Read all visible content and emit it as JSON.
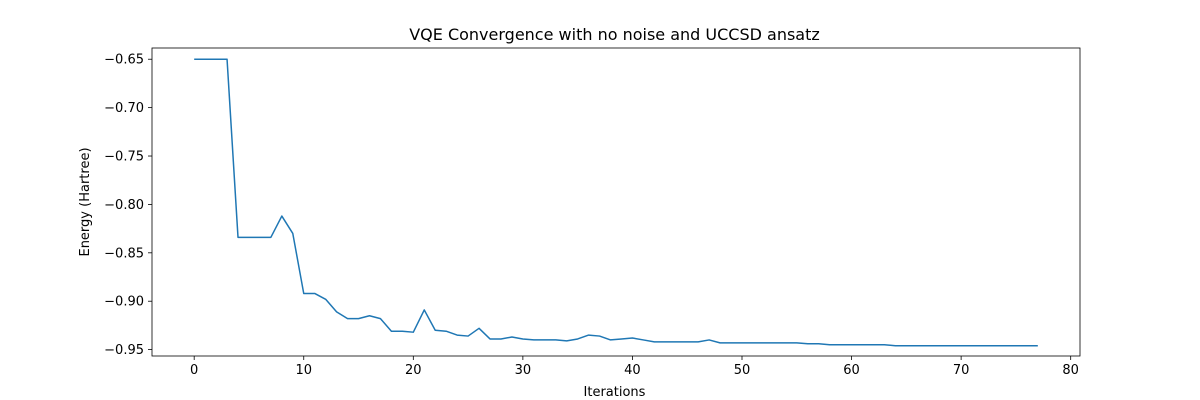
{
  "chart_data": {
    "type": "line",
    "title": "VQE Convergence with no noise and UCCSD ansatz",
    "xlabel": "Iterations",
    "ylabel": "Energy (Hartree)",
    "xlim": [
      -3.85,
      80.85
    ],
    "ylim": [
      -0.9566,
      -0.6384
    ],
    "xticks": [
      0,
      10,
      20,
      30,
      40,
      50,
      60,
      70,
      80
    ],
    "xtick_labels": [
      "0",
      "10",
      "20",
      "30",
      "40",
      "50",
      "60",
      "70",
      "80"
    ],
    "yticks": [
      -0.65,
      -0.7,
      -0.75,
      -0.8,
      -0.85,
      -0.9,
      -0.95
    ],
    "ytick_labels": [
      "−0.65",
      "−0.70",
      "−0.75",
      "−0.80",
      "−0.85",
      "−0.90",
      "−0.95"
    ],
    "grid": false,
    "color": "#1f77b4",
    "series": [
      {
        "x": [
          0,
          1,
          2,
          3,
          4,
          5,
          6,
          7,
          8,
          9,
          10,
          11,
          12,
          13,
          14,
          15,
          16,
          17,
          18,
          19,
          20,
          21,
          22,
          23,
          24,
          25,
          26,
          27,
          28,
          29,
          30,
          31,
          32,
          33,
          34,
          35,
          36,
          37,
          38,
          39,
          40,
          41,
          42,
          43,
          44,
          45,
          46,
          47,
          48,
          49,
          50,
          51,
          52,
          53,
          54,
          55,
          56,
          57,
          58,
          59,
          60,
          61,
          62,
          63,
          64,
          65,
          66,
          67,
          68,
          69,
          70,
          71,
          72,
          73,
          74,
          75,
          76,
          77
        ],
        "values": [
          -0.65,
          -0.65,
          -0.65,
          -0.65,
          -0.834,
          -0.834,
          -0.834,
          -0.834,
          -0.812,
          -0.83,
          -0.892,
          -0.892,
          -0.898,
          -0.911,
          -0.918,
          -0.918,
          -0.915,
          -0.918,
          -0.931,
          -0.931,
          -0.932,
          -0.909,
          -0.93,
          -0.931,
          -0.935,
          -0.936,
          -0.928,
          -0.939,
          -0.939,
          -0.937,
          -0.939,
          -0.94,
          -0.94,
          -0.94,
          -0.941,
          -0.939,
          -0.935,
          -0.936,
          -0.94,
          -0.939,
          -0.938,
          -0.94,
          -0.942,
          -0.942,
          -0.942,
          -0.942,
          -0.942,
          -0.94,
          -0.943,
          -0.943,
          -0.943,
          -0.943,
          -0.943,
          -0.943,
          -0.943,
          -0.943,
          -0.944,
          -0.944,
          -0.945,
          -0.945,
          -0.945,
          -0.945,
          -0.945,
          -0.945,
          -0.946,
          -0.946,
          -0.946,
          -0.946,
          -0.946,
          -0.946,
          -0.946,
          -0.946,
          -0.946,
          -0.946,
          -0.946,
          -0.946,
          -0.946,
          -0.946
        ]
      }
    ]
  }
}
